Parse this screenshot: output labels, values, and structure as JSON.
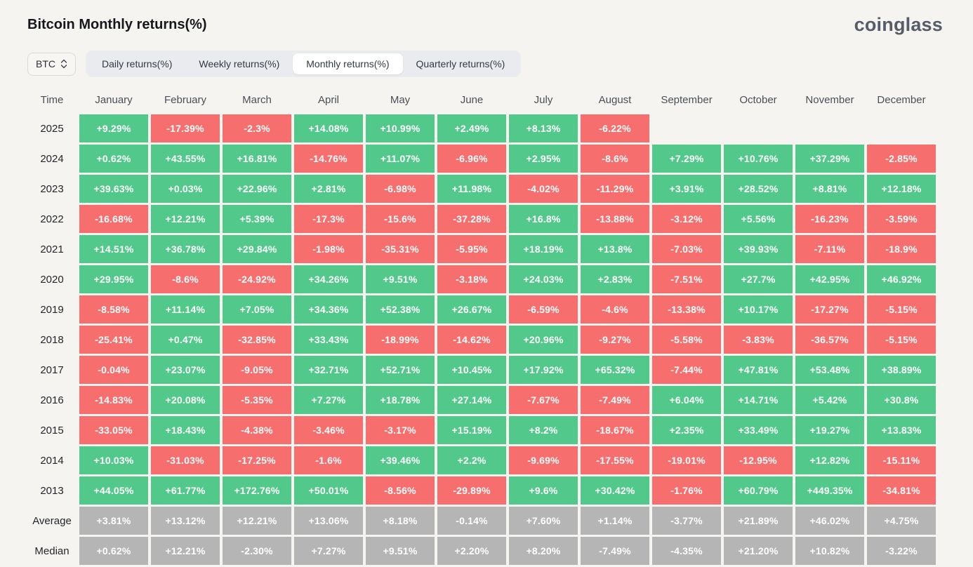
{
  "header": {
    "title": "Bitcoin Monthly returns(%)",
    "logo_text": "coinglass"
  },
  "controls": {
    "symbol_selector": {
      "value": "BTC",
      "icon": "updown-chevron-icon"
    },
    "tabs": [
      {
        "label": "Daily returns(%)",
        "active": false
      },
      {
        "label": "Weekly returns(%)",
        "active": false
      },
      {
        "label": "Monthly returns(%)",
        "active": true
      },
      {
        "label": "Quarterly returns(%)",
        "active": false
      }
    ]
  },
  "table": {
    "time_header": "Time",
    "months": [
      "January",
      "February",
      "March",
      "April",
      "May",
      "June",
      "July",
      "August",
      "September",
      "October",
      "November",
      "December"
    ],
    "rows": [
      {
        "label": "2025",
        "type": "year",
        "values": [
          "+9.29%",
          "-17.39%",
          "-2.3%",
          "+14.08%",
          "+10.99%",
          "+2.49%",
          "+8.13%",
          "-6.22%",
          "",
          "",
          "",
          ""
        ]
      },
      {
        "label": "2024",
        "type": "year",
        "values": [
          "+0.62%",
          "+43.55%",
          "+16.81%",
          "-14.76%",
          "+11.07%",
          "-6.96%",
          "+2.95%",
          "-8.6%",
          "+7.29%",
          "+10.76%",
          "+37.29%",
          "-2.85%"
        ]
      },
      {
        "label": "2023",
        "type": "year",
        "values": [
          "+39.63%",
          "+0.03%",
          "+22.96%",
          "+2.81%",
          "-6.98%",
          "+11.98%",
          "-4.02%",
          "-11.29%",
          "+3.91%",
          "+28.52%",
          "+8.81%",
          "+12.18%"
        ]
      },
      {
        "label": "2022",
        "type": "year",
        "values": [
          "-16.68%",
          "+12.21%",
          "+5.39%",
          "-17.3%",
          "-15.6%",
          "-37.28%",
          "+16.8%",
          "-13.88%",
          "-3.12%",
          "+5.56%",
          "-16.23%",
          "-3.59%"
        ]
      },
      {
        "label": "2021",
        "type": "year",
        "values": [
          "+14.51%",
          "+36.78%",
          "+29.84%",
          "-1.98%",
          "-35.31%",
          "-5.95%",
          "+18.19%",
          "+13.8%",
          "-7.03%",
          "+39.93%",
          "-7.11%",
          "-18.9%"
        ]
      },
      {
        "label": "2020",
        "type": "year",
        "values": [
          "+29.95%",
          "-8.6%",
          "-24.92%",
          "+34.26%",
          "+9.51%",
          "-3.18%",
          "+24.03%",
          "+2.83%",
          "-7.51%",
          "+27.7%",
          "+42.95%",
          "+46.92%"
        ]
      },
      {
        "label": "2019",
        "type": "year",
        "values": [
          "-8.58%",
          "+11.14%",
          "+7.05%",
          "+34.36%",
          "+52.38%",
          "+26.67%",
          "-6.59%",
          "-4.6%",
          "-13.38%",
          "+10.17%",
          "-17.27%",
          "-5.15%"
        ]
      },
      {
        "label": "2018",
        "type": "year",
        "values": [
          "-25.41%",
          "+0.47%",
          "-32.85%",
          "+33.43%",
          "-18.99%",
          "-14.62%",
          "+20.96%",
          "-9.27%",
          "-5.58%",
          "-3.83%",
          "-36.57%",
          "-5.15%"
        ]
      },
      {
        "label": "2017",
        "type": "year",
        "values": [
          "-0.04%",
          "+23.07%",
          "-9.05%",
          "+32.71%",
          "+52.71%",
          "+10.45%",
          "+17.92%",
          "+65.32%",
          "-7.44%",
          "+47.81%",
          "+53.48%",
          "+38.89%"
        ]
      },
      {
        "label": "2016",
        "type": "year",
        "values": [
          "-14.83%",
          "+20.08%",
          "-5.35%",
          "+7.27%",
          "+18.78%",
          "+27.14%",
          "-7.67%",
          "-7.49%",
          "+6.04%",
          "+14.71%",
          "+5.42%",
          "+30.8%"
        ]
      },
      {
        "label": "2015",
        "type": "year",
        "values": [
          "-33.05%",
          "+18.43%",
          "-4.38%",
          "-3.46%",
          "-3.17%",
          "+15.19%",
          "+8.2%",
          "-18.67%",
          "+2.35%",
          "+33.49%",
          "+19.27%",
          "+13.83%"
        ]
      },
      {
        "label": "2014",
        "type": "year",
        "values": [
          "+10.03%",
          "-31.03%",
          "-17.25%",
          "-1.6%",
          "+39.46%",
          "+2.2%",
          "-9.69%",
          "-17.55%",
          "-19.01%",
          "-12.95%",
          "+12.82%",
          "-15.11%"
        ]
      },
      {
        "label": "2013",
        "type": "year",
        "values": [
          "+44.05%",
          "+61.77%",
          "+172.76%",
          "+50.01%",
          "-8.56%",
          "-29.89%",
          "+9.6%",
          "+30.42%",
          "-1.76%",
          "+60.79%",
          "+449.35%",
          "-34.81%"
        ]
      },
      {
        "label": "Average",
        "type": "summary",
        "values": [
          "+3.81%",
          "+13.12%",
          "+12.21%",
          "+13.06%",
          "+8.18%",
          "-0.14%",
          "+7.60%",
          "+1.14%",
          "-3.77%",
          "+21.89%",
          "+46.02%",
          "+4.75%"
        ]
      },
      {
        "label": "Median",
        "type": "summary",
        "values": [
          "+0.62%",
          "+12.21%",
          "-2.30%",
          "+7.27%",
          "+9.51%",
          "+2.20%",
          "+8.20%",
          "-7.49%",
          "-4.35%",
          "+21.20%",
          "+10.82%",
          "-3.22%"
        ]
      }
    ]
  },
  "colors": {
    "positive": "#52c98b",
    "negative": "#f76e6e",
    "summary": "#b5b5b5",
    "cell_text": "#ffffff",
    "page_background": "#f5f4f1"
  }
}
